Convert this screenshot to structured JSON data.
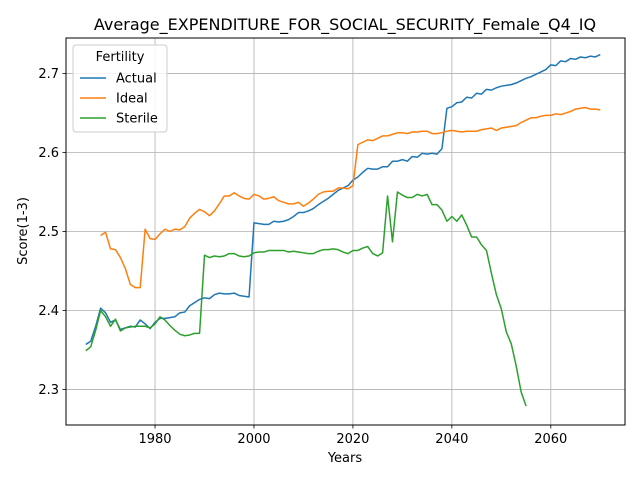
{
  "chart_data": {
    "type": "line",
    "title": "Average_EXPENDITURE_FOR_SOCIAL_SECURITY_Female_Q4_IQ",
    "xlabel": "Years",
    "ylabel": "Score(1-3)",
    "xlim": [
      1962,
      2075
    ],
    "ylim": [
      2.255,
      2.745
    ],
    "x_ticks": [
      1980,
      2000,
      2020,
      2040,
      2060
    ],
    "y_ticks": [
      2.3,
      2.4,
      2.5,
      2.6,
      2.7
    ],
    "x_tick_labels": [
      "1980",
      "2000",
      "2020",
      "2040",
      "2060"
    ],
    "y_tick_labels": [
      "2.3",
      "2.4",
      "2.5",
      "2.6",
      "2.7"
    ],
    "grid": true,
    "legend": {
      "title": "Fertility",
      "placement": "top-left"
    },
    "series": [
      {
        "name": "Actual",
        "color": "#1f77b4",
        "points": [
          [
            1966,
            2.357
          ],
          [
            1967,
            2.361
          ],
          [
            1968,
            2.38
          ],
          [
            1969,
            2.403
          ],
          [
            1970,
            2.397
          ],
          [
            1971,
            2.385
          ],
          [
            1972,
            2.388
          ],
          [
            1973,
            2.376
          ],
          [
            1974,
            2.378
          ],
          [
            1975,
            2.38
          ],
          [
            1976,
            2.379
          ],
          [
            1977,
            2.388
          ],
          [
            1978,
            2.383
          ],
          [
            1979,
            2.377
          ],
          [
            1980,
            2.385
          ],
          [
            1981,
            2.39
          ],
          [
            1982,
            2.39
          ],
          [
            1983,
            2.391
          ],
          [
            1984,
            2.392
          ],
          [
            1985,
            2.397
          ],
          [
            1986,
            2.398
          ],
          [
            1987,
            2.406
          ],
          [
            1988,
            2.41
          ],
          [
            1989,
            2.414
          ],
          [
            1990,
            2.416
          ],
          [
            1991,
            2.415
          ],
          [
            1992,
            2.42
          ],
          [
            1993,
            2.422
          ],
          [
            1994,
            2.421
          ],
          [
            1995,
            2.421
          ],
          [
            1996,
            2.422
          ],
          [
            1997,
            2.419
          ],
          [
            1998,
            2.418
          ],
          [
            1999,
            2.417
          ],
          [
            2000,
            2.511
          ],
          [
            2001,
            2.51
          ],
          [
            2002,
            2.509
          ],
          [
            2003,
            2.509
          ],
          [
            2004,
            2.513
          ],
          [
            2005,
            2.512
          ],
          [
            2006,
            2.513
          ],
          [
            2007,
            2.515
          ],
          [
            2008,
            2.519
          ],
          [
            2009,
            2.524
          ],
          [
            2010,
            2.524
          ],
          [
            2011,
            2.526
          ],
          [
            2012,
            2.529
          ],
          [
            2013,
            2.534
          ],
          [
            2014,
            2.538
          ],
          [
            2015,
            2.542
          ],
          [
            2016,
            2.547
          ],
          [
            2017,
            2.552
          ],
          [
            2018,
            2.555
          ],
          [
            2019,
            2.558
          ],
          [
            2020,
            2.565
          ],
          [
            2021,
            2.569
          ],
          [
            2022,
            2.575
          ],
          [
            2023,
            2.58
          ],
          [
            2024,
            2.579
          ],
          [
            2025,
            2.579
          ],
          [
            2026,
            2.582
          ],
          [
            2027,
            2.582
          ],
          [
            2028,
            2.589
          ],
          [
            2029,
            2.589
          ],
          [
            2030,
            2.591
          ],
          [
            2031,
            2.589
          ],
          [
            2032,
            2.595
          ],
          [
            2033,
            2.594
          ],
          [
            2034,
            2.599
          ],
          [
            2035,
            2.598
          ],
          [
            2036,
            2.599
          ],
          [
            2037,
            2.598
          ],
          [
            2038,
            2.605
          ],
          [
            2039,
            2.656
          ],
          [
            2040,
            2.658
          ],
          [
            2041,
            2.663
          ],
          [
            2042,
            2.664
          ],
          [
            2043,
            2.67
          ],
          [
            2044,
            2.669
          ],
          [
            2045,
            2.675
          ],
          [
            2046,
            2.674
          ],
          [
            2047,
            2.68
          ],
          [
            2048,
            2.679
          ],
          [
            2049,
            2.682
          ],
          [
            2050,
            2.684
          ],
          [
            2051,
            2.685
          ],
          [
            2052,
            2.686
          ],
          [
            2053,
            2.688
          ],
          [
            2054,
            2.691
          ],
          [
            2055,
            2.694
          ],
          [
            2056,
            2.696
          ],
          [
            2057,
            2.699
          ],
          [
            2058,
            2.702
          ],
          [
            2059,
            2.705
          ],
          [
            2060,
            2.711
          ],
          [
            2061,
            2.71
          ],
          [
            2062,
            2.716
          ],
          [
            2063,
            2.715
          ],
          [
            2064,
            2.719
          ],
          [
            2065,
            2.718
          ],
          [
            2066,
            2.721
          ],
          [
            2067,
            2.72
          ],
          [
            2068,
            2.722
          ],
          [
            2069,
            2.721
          ],
          [
            2070,
            2.724
          ]
        ]
      },
      {
        "name": "Ideal",
        "color": "#ff7f0e",
        "points": [
          [
            1969,
            2.495
          ],
          [
            1970,
            2.499
          ],
          [
            1971,
            2.478
          ],
          [
            1972,
            2.477
          ],
          [
            1973,
            2.467
          ],
          [
            1974,
            2.453
          ],
          [
            1975,
            2.433
          ],
          [
            1976,
            2.429
          ],
          [
            1977,
            2.429
          ],
          [
            1978,
            2.503
          ],
          [
            1979,
            2.491
          ],
          [
            1980,
            2.49
          ],
          [
            1981,
            2.497
          ],
          [
            1982,
            2.503
          ],
          [
            1983,
            2.5
          ],
          [
            1984,
            2.503
          ],
          [
            1985,
            2.502
          ],
          [
            1986,
            2.506
          ],
          [
            1987,
            2.517
          ],
          [
            1988,
            2.523
          ],
          [
            1989,
            2.528
          ],
          [
            1990,
            2.525
          ],
          [
            1991,
            2.52
          ],
          [
            1992,
            2.526
          ],
          [
            1993,
            2.535
          ],
          [
            1994,
            2.545
          ],
          [
            1995,
            2.545
          ],
          [
            1996,
            2.549
          ],
          [
            1997,
            2.545
          ],
          [
            1998,
            2.542
          ],
          [
            1999,
            2.541
          ],
          [
            2000,
            2.547
          ],
          [
            2001,
            2.545
          ],
          [
            2002,
            2.541
          ],
          [
            2003,
            2.542
          ],
          [
            2004,
            2.544
          ],
          [
            2005,
            2.539
          ],
          [
            2006,
            2.537
          ],
          [
            2007,
            2.535
          ],
          [
            2008,
            2.535
          ],
          [
            2009,
            2.537
          ],
          [
            2010,
            2.532
          ],
          [
            2011,
            2.536
          ],
          [
            2012,
            2.541
          ],
          [
            2013,
            2.547
          ],
          [
            2014,
            2.55
          ],
          [
            2015,
            2.551
          ],
          [
            2016,
            2.551
          ],
          [
            2017,
            2.555
          ],
          [
            2018,
            2.555
          ],
          [
            2019,
            2.554
          ],
          [
            2020,
            2.558
          ],
          [
            2021,
            2.61
          ],
          [
            2022,
            2.613
          ],
          [
            2023,
            2.616
          ],
          [
            2024,
            2.615
          ],
          [
            2025,
            2.618
          ],
          [
            2026,
            2.621
          ],
          [
            2027,
            2.621
          ],
          [
            2028,
            2.623
          ],
          [
            2029,
            2.625
          ],
          [
            2030,
            2.625
          ],
          [
            2031,
            2.624
          ],
          [
            2032,
            2.626
          ],
          [
            2033,
            2.626
          ],
          [
            2034,
            2.627
          ],
          [
            2035,
            2.627
          ],
          [
            2036,
            2.624
          ],
          [
            2037,
            2.624
          ],
          [
            2038,
            2.625
          ],
          [
            2039,
            2.627
          ],
          [
            2040,
            2.628
          ],
          [
            2041,
            2.627
          ],
          [
            2042,
            2.626
          ],
          [
            2043,
            2.627
          ],
          [
            2044,
            2.627
          ],
          [
            2045,
            2.627
          ],
          [
            2046,
            2.629
          ],
          [
            2047,
            2.63
          ],
          [
            2048,
            2.631
          ],
          [
            2049,
            2.628
          ],
          [
            2050,
            2.631
          ],
          [
            2051,
            2.632
          ],
          [
            2052,
            2.633
          ],
          [
            2053,
            2.634
          ],
          [
            2054,
            2.638
          ],
          [
            2055,
            2.641
          ],
          [
            2056,
            2.644
          ],
          [
            2057,
            2.644
          ],
          [
            2058,
            2.646
          ],
          [
            2059,
            2.647
          ],
          [
            2060,
            2.647
          ],
          [
            2061,
            2.649
          ],
          [
            2062,
            2.648
          ],
          [
            2063,
            2.65
          ],
          [
            2064,
            2.652
          ],
          [
            2065,
            2.655
          ],
          [
            2066,
            2.656
          ],
          [
            2067,
            2.657
          ],
          [
            2068,
            2.655
          ],
          [
            2069,
            2.655
          ],
          [
            2070,
            2.654
          ]
        ]
      },
      {
        "name": "Sterile",
        "color": "#2ca02c",
        "points": [
          [
            1966,
            2.349
          ],
          [
            1967,
            2.354
          ],
          [
            1968,
            2.375
          ],
          [
            1969,
            2.4
          ],
          [
            1970,
            2.392
          ],
          [
            1971,
            2.38
          ],
          [
            1972,
            2.389
          ],
          [
            1973,
            2.374
          ],
          [
            1974,
            2.378
          ],
          [
            1975,
            2.379
          ],
          [
            1976,
            2.38
          ],
          [
            1977,
            2.38
          ],
          [
            1978,
            2.38
          ],
          [
            1979,
            2.378
          ],
          [
            1980,
            2.383
          ],
          [
            1981,
            2.392
          ],
          [
            1982,
            2.388
          ],
          [
            1983,
            2.381
          ],
          [
            1984,
            2.375
          ],
          [
            1985,
            2.37
          ],
          [
            1986,
            2.368
          ],
          [
            1987,
            2.369
          ],
          [
            1988,
            2.371
          ],
          [
            1989,
            2.371
          ],
          [
            1990,
            2.47
          ],
          [
            1991,
            2.467
          ],
          [
            1992,
            2.469
          ],
          [
            1993,
            2.468
          ],
          [
            1994,
            2.469
          ],
          [
            1995,
            2.472
          ],
          [
            1996,
            2.472
          ],
          [
            1997,
            2.469
          ],
          [
            1998,
            2.468
          ],
          [
            1999,
            2.469
          ],
          [
            2000,
            2.473
          ],
          [
            2001,
            2.474
          ],
          [
            2002,
            2.474
          ],
          [
            2003,
            2.476
          ],
          [
            2004,
            2.476
          ],
          [
            2005,
            2.476
          ],
          [
            2006,
            2.476
          ],
          [
            2007,
            2.474
          ],
          [
            2008,
            2.475
          ],
          [
            2009,
            2.474
          ],
          [
            2010,
            2.473
          ],
          [
            2011,
            2.472
          ],
          [
            2012,
            2.472
          ],
          [
            2013,
            2.475
          ],
          [
            2014,
            2.477
          ],
          [
            2015,
            2.477
          ],
          [
            2016,
            2.478
          ],
          [
            2017,
            2.477
          ],
          [
            2018,
            2.474
          ],
          [
            2019,
            2.472
          ],
          [
            2020,
            2.476
          ],
          [
            2021,
            2.476
          ],
          [
            2022,
            2.479
          ],
          [
            2023,
            2.481
          ],
          [
            2024,
            2.472
          ],
          [
            2025,
            2.469
          ],
          [
            2026,
            2.473
          ],
          [
            2027,
            2.545
          ],
          [
            2028,
            2.487
          ],
          [
            2029,
            2.55
          ],
          [
            2030,
            2.546
          ],
          [
            2031,
            2.543
          ],
          [
            2032,
            2.543
          ],
          [
            2033,
            2.547
          ],
          [
            2034,
            2.545
          ],
          [
            2035,
            2.547
          ],
          [
            2036,
            2.534
          ],
          [
            2037,
            2.534
          ],
          [
            2038,
            2.527
          ],
          [
            2039,
            2.513
          ],
          [
            2040,
            2.519
          ],
          [
            2041,
            2.513
          ],
          [
            2042,
            2.521
          ],
          [
            2043,
            2.508
          ],
          [
            2044,
            2.493
          ],
          [
            2045,
            2.493
          ],
          [
            2046,
            2.483
          ],
          [
            2047,
            2.476
          ],
          [
            2048,
            2.447
          ],
          [
            2049,
            2.42
          ],
          [
            2050,
            2.402
          ],
          [
            2051,
            2.373
          ],
          [
            2052,
            2.358
          ],
          [
            2053,
            2.33
          ],
          [
            2054,
            2.297
          ],
          [
            2055,
            2.279
          ]
        ]
      }
    ]
  }
}
